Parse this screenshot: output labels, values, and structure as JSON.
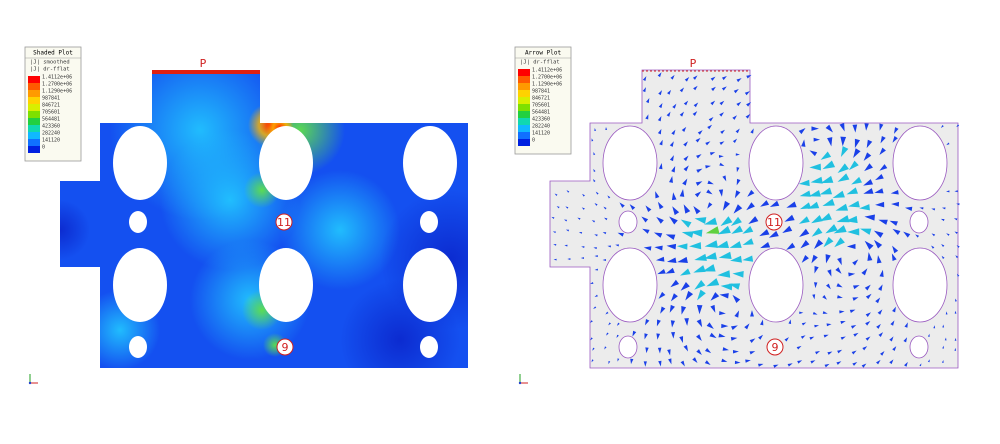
{
  "panels": [
    {
      "legend": {
        "title": "Shaded Plot",
        "lines": [
          "|J| smoothed",
          "|J| dr-fflat"
        ],
        "labels": [
          "1.4112e+06",
          "1.2700e+06",
          "1.1290e+06",
          "987841",
          "846721",
          "705601",
          "564481",
          "423360",
          "282240",
          "141120",
          "0"
        ]
      },
      "markers": [
        "P",
        "11",
        "9"
      ]
    },
    {
      "legend": {
        "title": "Arrow Plot",
        "lines": [
          "|J| dr-fflat"
        ],
        "labels": [
          "1.4112e+06",
          "1.2700e+06",
          "1.1290e+06",
          "987841",
          "846721",
          "705601",
          "564481",
          "423360",
          "282240",
          "141120",
          "0"
        ]
      },
      "markers": [
        "P",
        "11",
        "9"
      ]
    }
  ]
}
